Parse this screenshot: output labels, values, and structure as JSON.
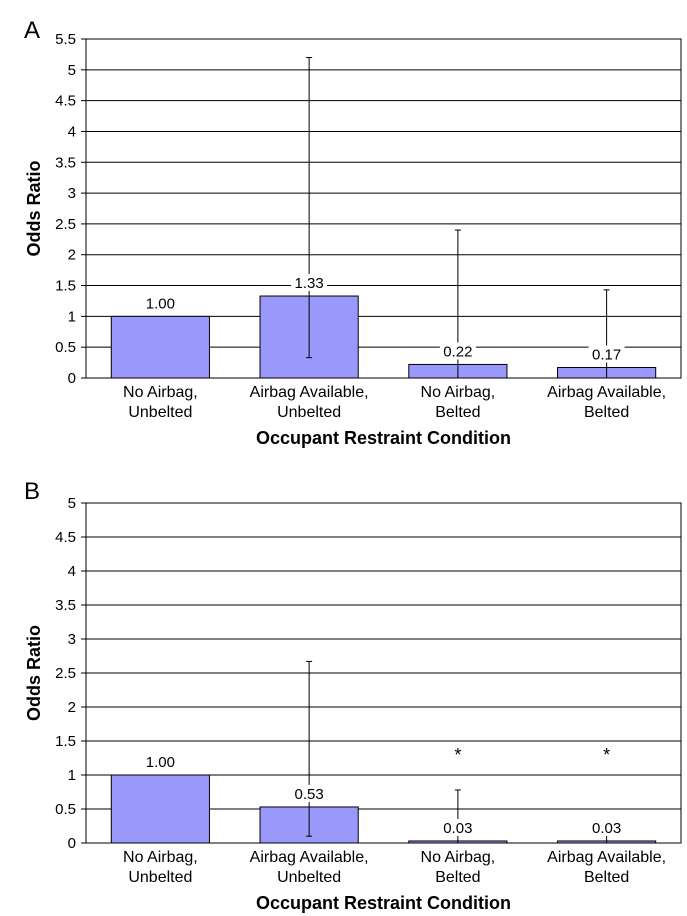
{
  "colors": {
    "bar": "#9a99fb",
    "bar_stroke": "#000000",
    "grid": "#000000"
  },
  "chart_data": [
    {
      "panel_label": "A",
      "type": "bar",
      "categories": [
        [
          "No Airbag,",
          "Unbelted"
        ],
        [
          "Airbag Available,",
          "Unbelted"
        ],
        [
          "No Airbag,",
          "Belted"
        ],
        [
          "Airbag Available,",
          "Belted"
        ]
      ],
      "values": [
        1.0,
        1.33,
        0.22,
        0.17
      ],
      "value_labels": [
        "1.00",
        "1.33",
        "0.22",
        "0.17"
      ],
      "error_low": [
        null,
        0.33,
        0.0,
        0.0
      ],
      "error_high": [
        null,
        5.2,
        2.4,
        1.43
      ],
      "significance": [
        "",
        "",
        "",
        ""
      ],
      "xlabel": "Occupant Restraint Condition",
      "ylabel": "Odds Ratio",
      "ylim": [
        0,
        5.5
      ],
      "yticks": [
        "0",
        "0.5",
        "1",
        "1.5",
        "2",
        "2.5",
        "3",
        "3.5",
        "4",
        "4.5",
        "5",
        "5.5"
      ],
      "grid": true
    },
    {
      "panel_label": "B",
      "type": "bar",
      "categories": [
        [
          "No Airbag,",
          "Unbelted"
        ],
        [
          "Airbag Available,",
          "Unbelted"
        ],
        [
          "No Airbag,",
          "Belted"
        ],
        [
          "Airbag Available,",
          "Belted"
        ]
      ],
      "values": [
        1.0,
        0.53,
        0.03,
        0.03
      ],
      "value_labels": [
        "1.00",
        "0.53",
        "0.03",
        "0.03"
      ],
      "error_low": [
        null,
        0.1,
        0.0,
        0.0
      ],
      "error_high": [
        null,
        2.67,
        0.78,
        0.23
      ],
      "significance": [
        "",
        "",
        "*",
        "*"
      ],
      "xlabel": "Occupant Restraint Condition",
      "ylabel": "Odds Ratio",
      "ylim": [
        0,
        5
      ],
      "yticks": [
        "0",
        "0.5",
        "1",
        "1.5",
        "2",
        "2.5",
        "3",
        "3.5",
        "4",
        "4.5",
        "5"
      ],
      "grid": true
    }
  ]
}
